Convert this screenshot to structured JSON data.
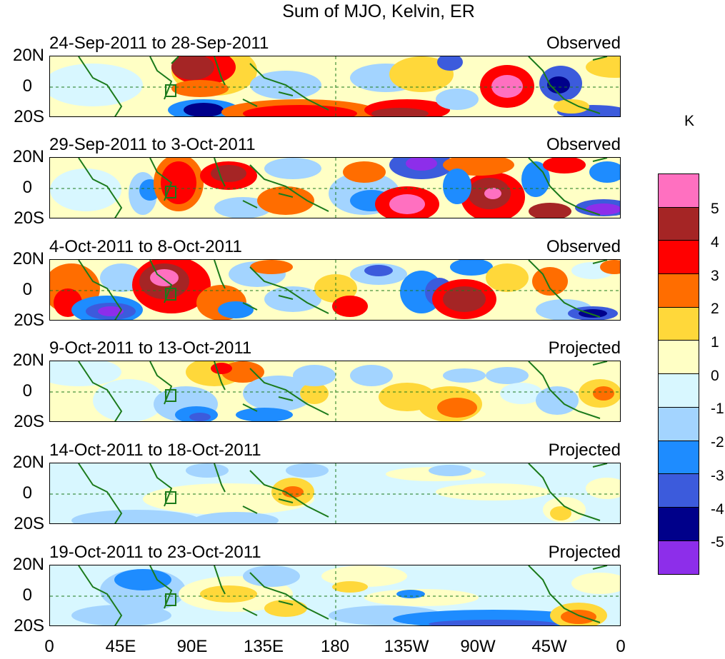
{
  "title": "Sum of MJO, Kelvin, ER",
  "unit_label": "K",
  "lat_labels": [
    "20N",
    "0",
    "20S"
  ],
  "lon_labels": [
    "0",
    "45E",
    "90E",
    "135E",
    "180",
    "135W",
    "90W",
    "45W",
    "0"
  ],
  "colorbar": {
    "colors": [
      "#ff70c0",
      "#a52525",
      "#ff0000",
      "#ff6d00",
      "#ffd83a",
      "#ffffc5",
      "#d8f7ff",
      "#a3d4ff",
      "#1e8cff",
      "#3c5bdc",
      "#00008a",
      "#8d2eea"
    ],
    "labels": [
      "5",
      "4",
      "3",
      "2",
      "1",
      "0",
      "-1",
      "-2",
      "-3",
      "-4",
      "-5"
    ]
  },
  "panels": [
    {
      "dates": "24-Sep-2011 to 28-Sep-2011",
      "status": "Observed"
    },
    {
      "dates": "29-Sep-2011 to 3-Oct-2011",
      "status": "Observed"
    },
    {
      "dates": "4-Oct-2011 to 8-Oct-2011",
      "status": "Observed"
    },
    {
      "dates": "9-Oct-2011 to 13-Oct-2011",
      "status": "Projected"
    },
    {
      "dates": "14-Oct-2011 to 18-Oct-2011",
      "status": "Projected"
    },
    {
      "dates": "19-Oct-2011 to 23-Oct-2011",
      "status": "Projected"
    }
  ]
}
